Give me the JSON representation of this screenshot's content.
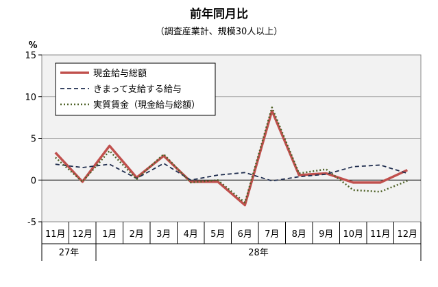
{
  "chart_data": {
    "type": "line",
    "title": "前年同月比",
    "subtitle": "（調査産業計、規模30人以上）",
    "ylabel": "%",
    "ylim": [
      -5,
      15
    ],
    "yticks": [
      "15",
      "10",
      "5",
      "0",
      "-5"
    ],
    "grid": true,
    "categories": [
      "11月",
      "12月",
      "1月",
      "2月",
      "3月",
      "4月",
      "5月",
      "6月",
      "7月",
      "8月",
      "9月",
      "10月",
      "11月",
      "12月"
    ],
    "year_groups": [
      {
        "label": "27年",
        "span": 2
      },
      {
        "label": "28年",
        "span": 12
      }
    ],
    "legend_position": "top-left",
    "series": [
      {
        "name": "現金給与総額",
        "color": "#c0504d",
        "style": "solid",
        "values": [
          3.3,
          -0.2,
          4.1,
          0.3,
          2.9,
          -0.2,
          -0.2,
          -3.0,
          8.3,
          0.6,
          0.8,
          -0.3,
          -0.3,
          1.2
        ]
      },
      {
        "name": "きまって支給する給与",
        "color": "#1f2d4e",
        "style": "dashed",
        "values": [
          1.9,
          1.5,
          1.9,
          0.2,
          2.0,
          0.0,
          0.6,
          0.9,
          -0.1,
          0.4,
          0.7,
          1.6,
          1.8,
          0.8
        ]
      },
      {
        "name": "実質賃金（現金給与総額）",
        "color": "#4f6228",
        "style": "dotted",
        "values": [
          2.7,
          -0.2,
          3.5,
          0.1,
          3.1,
          -0.3,
          0.0,
          -2.7,
          8.7,
          0.8,
          1.3,
          -1.2,
          -1.4,
          -0.1
        ]
      }
    ]
  }
}
